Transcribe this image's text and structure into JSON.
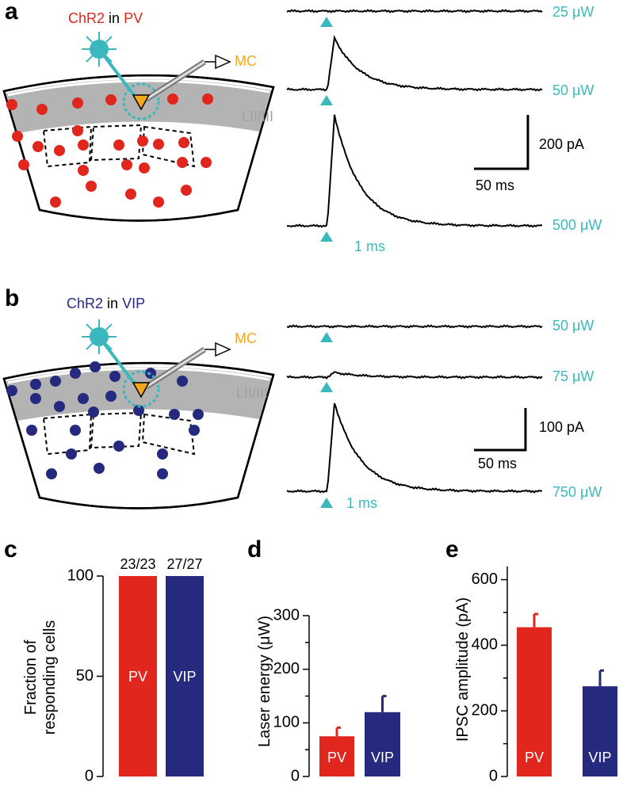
{
  "panels": {
    "a": {
      "letter": "a",
      "title": [
        "ChR2",
        "in",
        "PV"
      ],
      "electrode": "MC",
      "layer": "LII/III",
      "powers": [
        "25 μW",
        "50 μW",
        "500 μW"
      ],
      "pulse": "1 ms",
      "scale_y": "200 pA",
      "scale_x": "50 ms"
    },
    "b": {
      "letter": "b",
      "title": [
        "ChR2",
        "in",
        "VIP"
      ],
      "electrode": "MC",
      "layer": "LII/III",
      "powers": [
        "50 μW",
        "75 μW",
        "750 μW"
      ],
      "pulse": "1 ms",
      "scale_y": "100 pA",
      "scale_x": "50 ms"
    }
  },
  "chart_data": [
    {
      "type": "bar",
      "letter": "c",
      "ylabel": [
        "Fraction of",
        "responding cells"
      ],
      "categories": [
        "PV",
        "VIP"
      ],
      "values": [
        100,
        100
      ],
      "annotations": [
        "23/23",
        "27/27"
      ],
      "colors": [
        "#e0261d",
        "#252a7f"
      ],
      "ylim": [
        0,
        100
      ],
      "yticks": [
        0,
        50,
        100
      ]
    },
    {
      "type": "bar",
      "letter": "d",
      "ylabel": [
        "Laser energy (μW)"
      ],
      "categories": [
        "PV",
        "VIP"
      ],
      "values": [
        75,
        120
      ],
      "errors": [
        16,
        30
      ],
      "colors": [
        "#e0261d",
        "#252a7f"
      ],
      "ylim": [
        0,
        300
      ],
      "yticks": [
        0,
        100,
        200,
        300
      ],
      "minor_yticks": [
        50,
        150,
        250
      ]
    },
    {
      "type": "bar",
      "letter": "e",
      "ylabel": [
        "IPSC amplitude (pA)"
      ],
      "categories": [
        "PV",
        "VIP"
      ],
      "values": [
        455,
        275
      ],
      "errors": [
        40,
        48
      ],
      "colors": [
        "#e0261d",
        "#252a7f"
      ],
      "ylim": [
        0,
        640
      ],
      "yticks": [
        0,
        200,
        400,
        600
      ],
      "minor_yticks": [
        100,
        300,
        500
      ]
    }
  ]
}
